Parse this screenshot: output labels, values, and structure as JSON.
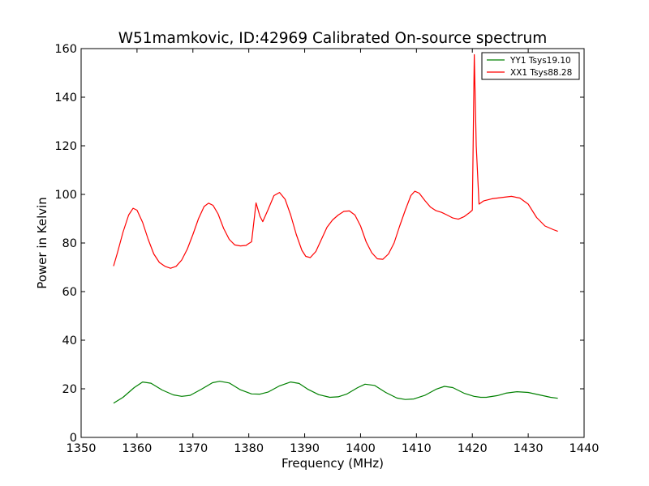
{
  "chart_data": {
    "type": "line",
    "title": "W51mamkovic, ID:42969 Calibrated On-source spectrum",
    "xlabel": "Frequency (MHz)",
    "ylabel": "Power in Kelvin",
    "xlim": [
      1350,
      1440
    ],
    "ylim": [
      0,
      160
    ],
    "xticks": [
      "1350",
      "1360",
      "1370",
      "1380",
      "1390",
      "1400",
      "1410",
      "1420",
      "1430",
      "1440"
    ],
    "yticks": [
      "0",
      "20",
      "40",
      "60",
      "80",
      "100",
      "120",
      "140",
      "160"
    ],
    "grid": false,
    "legend_position": "top-right",
    "series": [
      {
        "name": "YY1 Tsys19.10",
        "color": "#008000",
        "x": [
          1355.8,
          1357.5,
          1359.5,
          1361.0,
          1362.5,
          1364.5,
          1366.5,
          1368.0,
          1369.5,
          1371.5,
          1373.5,
          1374.8,
          1376.5,
          1378.5,
          1380.5,
          1382.0,
          1383.5,
          1385.5,
          1387.5,
          1389.0,
          1390.5,
          1392.5,
          1394.5,
          1396.0,
          1397.5,
          1399.5,
          1400.8,
          1402.5,
          1404.5,
          1406.5,
          1408.0,
          1409.5,
          1411.5,
          1413.5,
          1415.0,
          1416.5,
          1418.5,
          1420.3,
          1421.5,
          1422.5,
          1424.5,
          1426.0,
          1428.0,
          1430.0,
          1432.0,
          1434.0,
          1435.3
        ],
        "values": [
          14.1,
          16.5,
          20.5,
          22.8,
          22.3,
          19.5,
          17.5,
          16.9,
          17.3,
          19.8,
          22.5,
          23.1,
          22.4,
          19.6,
          17.9,
          17.8,
          18.7,
          21.2,
          22.8,
          22.2,
          19.9,
          17.6,
          16.5,
          16.7,
          17.8,
          20.5,
          21.9,
          21.4,
          18.5,
          16.2,
          15.6,
          15.8,
          17.3,
          19.8,
          21.0,
          20.5,
          18.2,
          16.9,
          16.5,
          16.5,
          17.2,
          18.2,
          18.8,
          18.5,
          17.5,
          16.5,
          16.1
        ]
      },
      {
        "name": "XX1 Tsys88.28",
        "color": "#ff0000",
        "x": [
          1355.8,
          1356.5,
          1357.5,
          1358.5,
          1359.3,
          1360.0,
          1361.0,
          1362.0,
          1363.0,
          1364.0,
          1365.0,
          1366.0,
          1367.0,
          1368.0,
          1369.0,
          1370.0,
          1371.0,
          1372.0,
          1372.8,
          1373.6,
          1374.5,
          1375.5,
          1376.5,
          1377.5,
          1378.5,
          1379.5,
          1380.0,
          1380.5,
          1381.3,
          1382.0,
          1382.5,
          1383.5,
          1384.5,
          1385.5,
          1386.5,
          1387.5,
          1388.5,
          1389.5,
          1390.2,
          1391.0,
          1392.0,
          1393.0,
          1394.0,
          1395.0,
          1396.0,
          1397.0,
          1398.0,
          1399.0,
          1400.0,
          1401.0,
          1402.0,
          1403.0,
          1404.0,
          1405.0,
          1406.0,
          1407.0,
          1408.0,
          1409.0,
          1409.7,
          1410.5,
          1411.5,
          1412.5,
          1413.5,
          1414.5,
          1415.5,
          1416.5,
          1417.5,
          1418.5,
          1419.5,
          1420.0,
          1420.35,
          1420.7,
          1421.2,
          1422.0,
          1423.5,
          1425.5,
          1427.0,
          1428.5,
          1430.0,
          1431.5,
          1433.0,
          1434.5,
          1435.3
        ],
        "values": [
          70.5,
          76.0,
          84.5,
          91.5,
          94.3,
          93.5,
          88.5,
          81.5,
          75.5,
          72.0,
          70.4,
          69.6,
          70.4,
          73.0,
          77.5,
          83.5,
          90.0,
          95.0,
          96.4,
          95.5,
          92.0,
          86.0,
          81.5,
          79.2,
          78.8,
          79.0,
          79.8,
          80.5,
          96.5,
          91.0,
          88.8,
          94.0,
          99.5,
          100.8,
          98.0,
          91.5,
          83.5,
          77.0,
          74.5,
          74.0,
          76.5,
          81.5,
          86.5,
          89.5,
          91.5,
          93.0,
          93.2,
          91.5,
          87.0,
          80.5,
          76.0,
          73.5,
          73.3,
          75.5,
          80.0,
          87.0,
          93.5,
          99.5,
          101.3,
          100.5,
          97.5,
          94.8,
          93.3,
          92.6,
          91.5,
          90.3,
          89.8,
          90.8,
          92.5,
          93.5,
          157.5,
          120.0,
          96.0,
          97.3,
          98.2,
          98.8,
          99.2,
          98.5,
          96.0,
          90.5,
          87.0,
          85.5,
          84.8
        ]
      }
    ]
  }
}
